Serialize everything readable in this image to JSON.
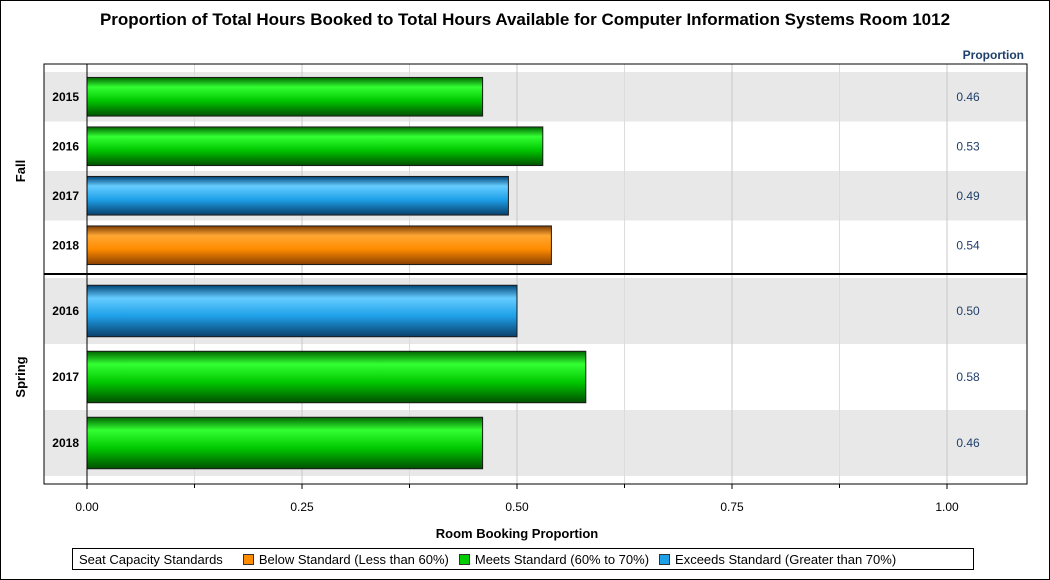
{
  "chart_data": {
    "type": "bar",
    "orientation": "horizontal",
    "title": "Proportion of Total Hours Booked to Total Hours Available for Computer Information Systems Room 1012",
    "xlabel": "Room Booking Proportion",
    "value_column_header": "Proportion",
    "xlim": [
      0,
      1.1
    ],
    "x_ticks": [
      0.0,
      0.25,
      0.5,
      0.75,
      1.0
    ],
    "x_tick_labels": [
      "0.00",
      "0.25",
      "0.50",
      "0.75",
      "1.00"
    ],
    "grid": true,
    "legend_placement": "bottom",
    "groups": [
      {
        "name": "Fall",
        "bars": [
          {
            "category": "2015",
            "value": 0.46,
            "label": "0.46",
            "standard": "meets"
          },
          {
            "category": "2016",
            "value": 0.53,
            "label": "0.53",
            "standard": "meets"
          },
          {
            "category": "2017",
            "value": 0.49,
            "label": "0.49",
            "standard": "exceeds"
          },
          {
            "category": "2018",
            "value": 0.54,
            "label": "0.54",
            "standard": "below"
          }
        ]
      },
      {
        "name": "Spring",
        "bars": [
          {
            "category": "2016",
            "value": 0.5,
            "label": "0.50",
            "standard": "exceeds"
          },
          {
            "category": "2017",
            "value": 0.58,
            "label": "0.58",
            "standard": "meets"
          },
          {
            "category": "2018",
            "value": 0.46,
            "label": "0.46",
            "standard": "meets"
          }
        ]
      }
    ],
    "legend": {
      "title": "Seat Capacity Standards",
      "items": [
        {
          "key": "below",
          "label": "Below Standard (Less than 60%)",
          "color": "#ff8c00"
        },
        {
          "key": "meets",
          "label": "Meets Standard (60% to 70%)",
          "color": "#00cc00"
        },
        {
          "key": "exceeds",
          "label": "Exceeds Standard (Greater than 70%)",
          "color": "#1ea0e8"
        }
      ]
    }
  }
}
